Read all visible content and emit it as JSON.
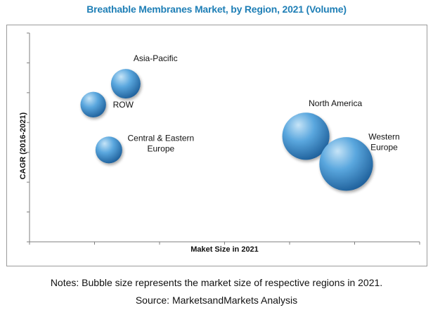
{
  "title": "Breathable Membranes Market, by Region, 2021 (Volume)",
  "notes": "Notes: Bubble size represents the market size of respective regions in 2021.",
  "source": "Source: MarketsandMarkets Analysis",
  "colors": {
    "title": "#1f7fb6",
    "bubble_light": "#c6e4f7",
    "bubble_mid": "#5aa7de",
    "bubble_dark": "#1e5f9a",
    "axis": "#7f7f7f"
  },
  "chart_data": {
    "type": "scatter",
    "title": "Breathable Membranes Market, by Region, 2021 (Volume)",
    "xlabel": "Maket Size in 2021",
    "ylabel": "CAGR (2016-2021)",
    "xlim": [
      0,
      6
    ],
    "ylim": [
      0,
      7
    ],
    "x_ticks": 6,
    "y_ticks": 7,
    "grid": false,
    "legend": "none",
    "series": [
      {
        "points": [
          {
            "label": [
              "Asia-Pacific"
            ],
            "x": 1.48,
            "y": 5.3,
            "size": 1.0
          },
          {
            "label": [
              "ROW"
            ],
            "x": 0.98,
            "y": 4.6,
            "size": 0.75
          },
          {
            "label": [
              "Central & Eastern",
              "Europe"
            ],
            "x": 1.22,
            "y": 3.08,
            "size": 0.82
          },
          {
            "label": [
              "North America"
            ],
            "x": 4.25,
            "y": 3.54,
            "size": 2.55
          },
          {
            "label": [
              "Western",
              "Europe"
            ],
            "x": 4.87,
            "y": 2.61,
            "size": 3.3
          }
        ]
      }
    ]
  }
}
